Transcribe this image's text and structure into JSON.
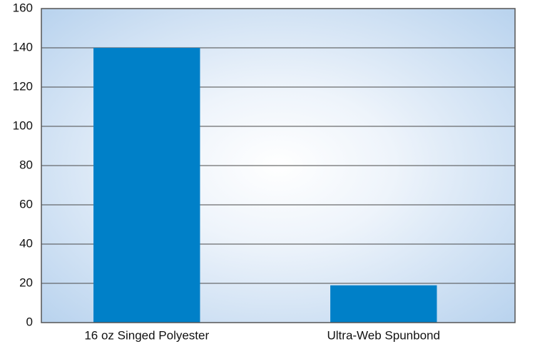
{
  "chart_data": {
    "type": "bar",
    "categories": [
      "16 oz Singed Polyester",
      "Ultra-Web Spunbond"
    ],
    "values": [
      140,
      19
    ],
    "color": "#0080c8",
    "ylim": [
      0,
      160
    ],
    "yticks": [
      0,
      20,
      40,
      60,
      80,
      100,
      120,
      140,
      160
    ],
    "grid": true
  }
}
